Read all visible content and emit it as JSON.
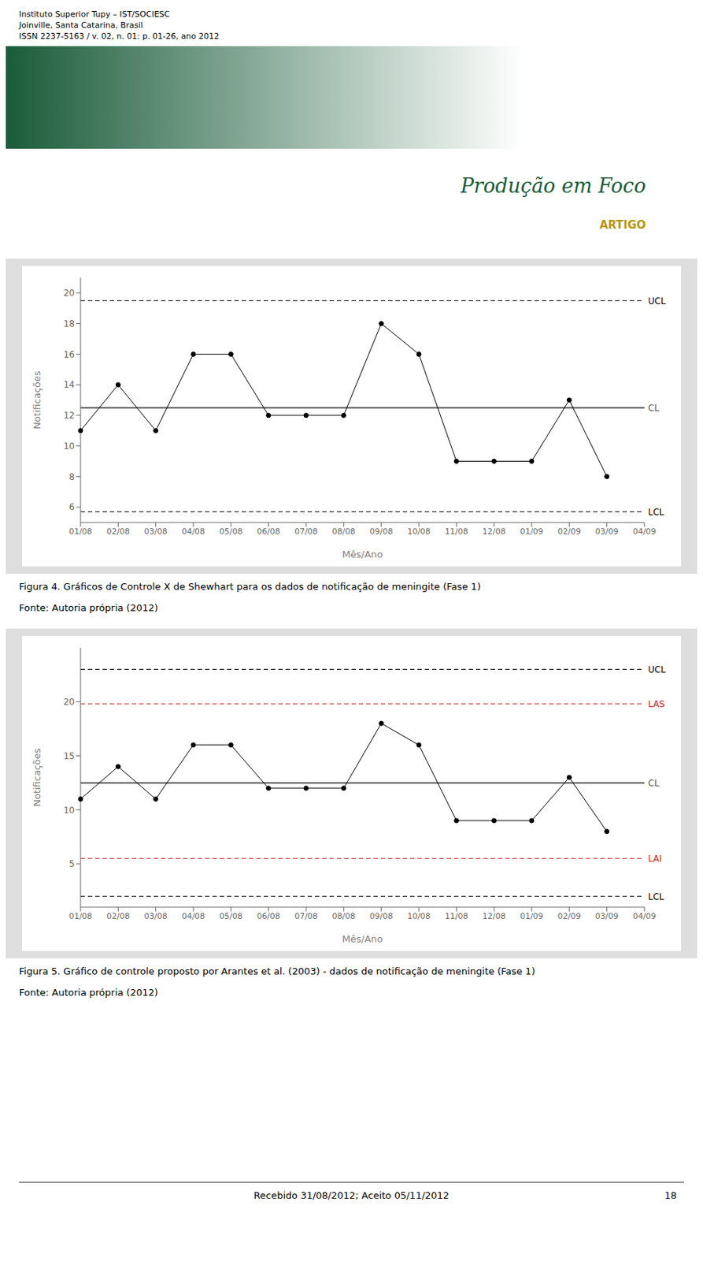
{
  "page_bg": "#ffffff",
  "header_lines": [
    "Instituto Superior Tupy – IST/SOCIESC",
    "Joinville, Santa Catarina, Brasil",
    "ISSN 2237-5163 / v. 02, n. 01: p. 01-26, ano 2012"
  ],
  "brand_text": "Produção em Foco",
  "brand_sub": "ARTIGO",
  "brand_color": "#1a5c3a",
  "artigo_color": "#b8960a",
  "chart_data": [
    {
      "type": "line",
      "categories": [
        "01/08",
        "02/08",
        "03/08",
        "04/08",
        "05/08",
        "06/08",
        "07/08",
        "08/08",
        "09/08",
        "10/08",
        "11/08",
        "12/08",
        "01/09",
        "02/09",
        "03/09",
        "04/09"
      ],
      "values": [
        11,
        14,
        11,
        16,
        16,
        12,
        12,
        12,
        18,
        16,
        9,
        9,
        9,
        13,
        8,
        null
      ],
      "color": "#000000",
      "marker": "o",
      "xlabel": "Mês/Ano",
      "ylabel": "Notificações",
      "ylim": [
        5,
        21
      ],
      "yticks": [
        6,
        8,
        10,
        12,
        14,
        16,
        18,
        20
      ],
      "grid": false,
      "background": "#dedede",
      "reference_lines": [
        {
          "value": 19.5,
          "label": "UCL",
          "color": "#000000",
          "line_style": "dashed"
        },
        {
          "value": 12.5,
          "label": "CL",
          "color": "#555555",
          "line_style": "solid"
        },
        {
          "value": 5.7,
          "label": "LCL",
          "color": "#000000",
          "line_style": "dashed"
        }
      ],
      "caption": "Figura 4.  Gráficos de Controle X de Shewhart para os dados de notificação de meningite (Fase 1)",
      "source": "Fonte: Autoria própria (2012)"
    },
    {
      "type": "line",
      "categories": [
        "01/08",
        "02/08",
        "03/08",
        "04/08",
        "05/08",
        "06/08",
        "07/08",
        "08/08",
        "09/08",
        "10/08",
        "11/08",
        "12/08",
        "01/09",
        "02/09",
        "03/09",
        "04/09"
      ],
      "values": [
        11,
        14,
        11,
        16,
        16,
        12,
        12,
        12,
        18,
        16,
        9,
        9,
        9,
        13,
        8,
        null
      ],
      "color": "#000000",
      "marker": "o",
      "xlabel": "Mês/Ano",
      "ylabel": "Notificações",
      "ylim": [
        1,
        25
      ],
      "yticks": [
        5,
        10,
        15,
        20
      ],
      "grid": false,
      "background": "#dedede",
      "reference_lines": [
        {
          "value": 23.0,
          "label": "UCL",
          "color": "#000000",
          "line_style": "dashed"
        },
        {
          "value": 19.8,
          "label": "LAS",
          "color": "#cc2222",
          "line_style": "dashed"
        },
        {
          "value": 12.5,
          "label": "CL",
          "color": "#555555",
          "line_style": "solid"
        },
        {
          "value": 5.5,
          "label": "LAI",
          "color": "#cc2222",
          "line_style": "dashed"
        },
        {
          "value": 2.0,
          "label": "LCL",
          "color": "#000000",
          "line_style": "dashed"
        }
      ],
      "caption": "Figura 5.  Gráfico de controle proposto por Arantes et al. (2003) - dados de notificação de meningite (Fase 1)",
      "source": "Fonte: Autoria própria (2012)"
    }
  ],
  "footer_text": "Recebido 31/08/2012; Aceito 05/11/2012",
  "footer_page": "18"
}
